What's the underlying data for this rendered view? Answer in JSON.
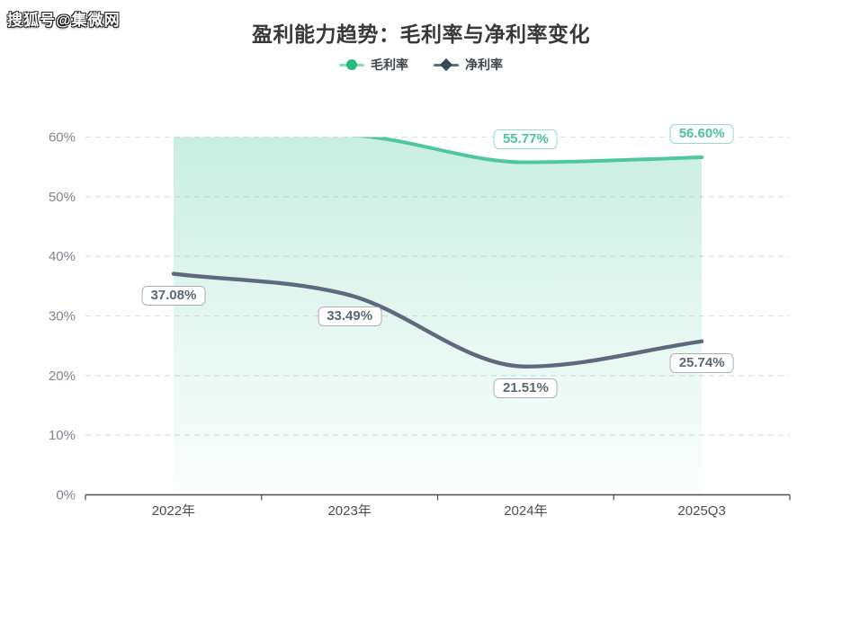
{
  "watermark": "搜狐号@集微网",
  "chart_data": {
    "type": "line",
    "title": "盈利能力趋势：毛利率与净利率变化",
    "categories": [
      "2022年",
      "2023年",
      "2024年",
      "2025Q3"
    ],
    "y_ticks": [
      "0%",
      "10%",
      "20%",
      "30%",
      "40%",
      "50%",
      "60%"
    ],
    "ylim": [
      0,
      60
    ],
    "grid": "horizontal-dashed",
    "legend_position": "top-center",
    "series": [
      {
        "name": "毛利率",
        "marker": "circle",
        "line_color": "#4fc79e",
        "marker_color": "#2bb87d",
        "label_color": "#4bc49a",
        "label_border": "#93ddc3",
        "area": true,
        "smooth": true,
        "values": [
          60.6,
          60.3,
          55.77,
          56.6
        ],
        "labels": [
          "",
          "",
          "55.77%",
          "56.60%"
        ],
        "label_anchor": "above",
        "note": "2022 and 2023 points lie above the 60% axis maximum; the line is clipped at the plot top and those two points show no data labels"
      },
      {
        "name": "净利率",
        "marker": "diamond",
        "line_color": "#5b6a7d",
        "marker_color": "#35495d",
        "label_color": "#5b6775",
        "label_border": "#a8b0ba",
        "area": false,
        "smooth": true,
        "values": [
          37.08,
          33.49,
          21.51,
          25.74
        ],
        "labels": [
          "37.08%",
          "33.49%",
          "21.51%",
          "25.74%"
        ],
        "label_anchor": "below"
      }
    ],
    "colors": {
      "grid_line": "#dde3f2",
      "axis_line": "#4a4e55",
      "y_tick_text": "#7e8490",
      "x_tick_text": "#494e54",
      "area_top": "rgba(79,199,158,0.30)",
      "area_bottom": "rgba(79,199,158,0.02)"
    }
  }
}
